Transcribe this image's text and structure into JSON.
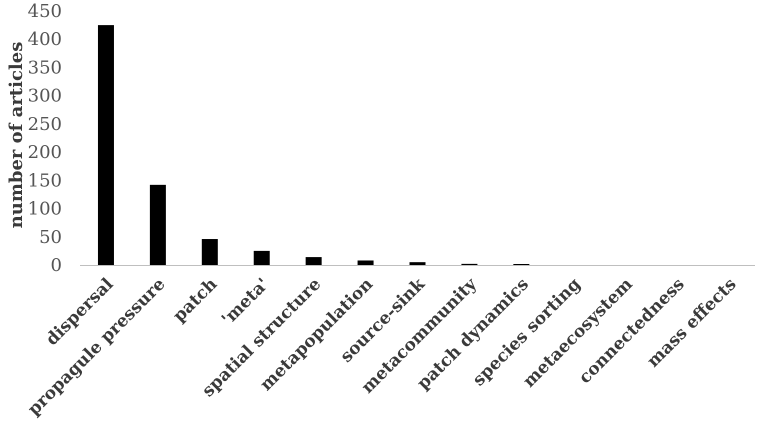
{
  "chart_data": {
    "type": "bar",
    "title": "",
    "xlabel": "",
    "ylabel": "number of articles",
    "ylim": [
      0,
      450
    ],
    "yticks": [
      0,
      50,
      100,
      150,
      200,
      250,
      300,
      350,
      400,
      450
    ],
    "grid": false,
    "categories": [
      "dispersal",
      "propagule pressure",
      "patch",
      "'meta'",
      "spatial structure",
      "metapopulation",
      "source-sink",
      "metacommunity",
      "patch dynamics",
      "species sorting",
      "metaecosystem",
      "connectedness",
      "mass effects"
    ],
    "values": [
      425,
      142,
      46,
      25,
      14,
      8,
      5,
      2,
      1,
      0,
      0,
      0,
      0
    ],
    "colors": {
      "bar": "#000000",
      "axis": "#bfbfbf",
      "text": "#3a3a3a"
    }
  }
}
